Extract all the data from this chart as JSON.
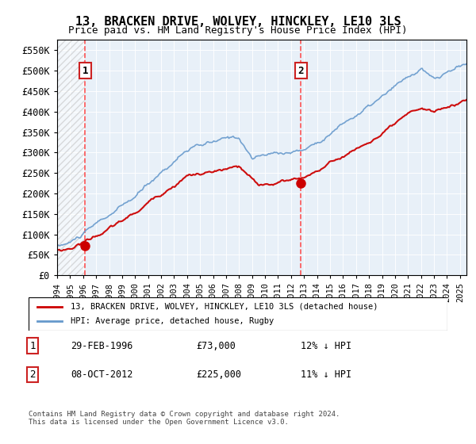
{
  "title": "13, BRACKEN DRIVE, WOLVEY, HINCKLEY, LE10 3LS",
  "subtitle": "Price paid vs. HM Land Registry's House Price Index (HPI)",
  "legend_line1": "13, BRACKEN DRIVE, WOLVEY, HINCKLEY, LE10 3LS (detached house)",
  "legend_line2": "HPI: Average price, detached house, Rugby",
  "annotation1_date": "29-FEB-1996",
  "annotation1_price": "£73,000",
  "annotation1_hpi": "12% ↓ HPI",
  "annotation2_date": "08-OCT-2012",
  "annotation2_price": "£225,000",
  "annotation2_hpi": "11% ↓ HPI",
  "footer": "Contains HM Land Registry data © Crown copyright and database right 2024.\nThis data is licensed under the Open Government Licence v3.0.",
  "sale1_x": 1996.16,
  "sale1_y": 73000,
  "sale2_x": 2012.77,
  "sale2_y": 225000,
  "hpi_color": "#6699cc",
  "price_color": "#cc0000",
  "dot_color": "#cc0000",
  "vline_color": "#ff4444",
  "bg_plot": "#e8f0f8",
  "ylim": [
    0,
    575000
  ],
  "xlim_start": 1994.0,
  "xlim_end": 2025.5,
  "yticks": [
    0,
    50000,
    100000,
    150000,
    200000,
    250000,
    300000,
    350000,
    400000,
    450000,
    500000,
    550000
  ],
  "xticks": [
    1994,
    1995,
    1996,
    1997,
    1998,
    1999,
    2000,
    2001,
    2002,
    2003,
    2004,
    2005,
    2006,
    2007,
    2008,
    2009,
    2010,
    2011,
    2012,
    2013,
    2014,
    2015,
    2016,
    2017,
    2018,
    2019,
    2020,
    2021,
    2022,
    2023,
    2024,
    2025
  ]
}
